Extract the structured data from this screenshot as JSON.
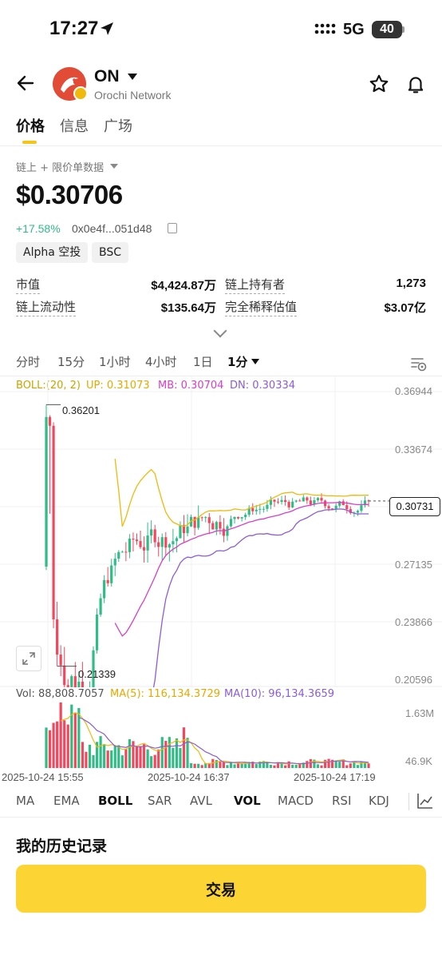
{
  "status_bar": {
    "time": "17:27",
    "network": "5G",
    "battery": "40"
  },
  "token": {
    "symbol": "ON",
    "name": "Orochi Network"
  },
  "tabs": [
    {
      "label": "价格"
    },
    {
      "label": "信息"
    },
    {
      "label": "广场"
    }
  ],
  "data_source": "链上 + 限价单数据",
  "price": "$0.30706",
  "change": "+17.58%",
  "address": "0x0e4f...051d48",
  "tags": [
    "Alpha 空投",
    "BSC"
  ],
  "stats": [
    {
      "label": "市值",
      "value": "$4,424.87万"
    },
    {
      "label": "链上持有者",
      "value": "1,273"
    },
    {
      "label": "链上流动性",
      "value": "$135.64万"
    },
    {
      "label": "完全稀释估值",
      "value": "$3.07亿"
    }
  ],
  "intervals": [
    "分时",
    "15分",
    "1小时",
    "4小时",
    "1日",
    "1分"
  ],
  "boll_legend": {
    "params": "BOLL:(20, 2)",
    "up": "UP: 0.31073",
    "mb": "MB: 0.30704",
    "dn": "DN: 0.30334"
  },
  "price_axis": [
    "0.36944",
    "0.33674",
    "0.27135",
    "0.23866",
    "0.20596"
  ],
  "current_price_label": "0.30731",
  "high_label": "0.36201",
  "low_label": "0.21339",
  "vol_legend": {
    "vol": "Vol: 88,808.7057",
    "ma5": "MA(5): 116,134.3729",
    "ma10": "MA(10): 96,134.3659"
  },
  "vol_axis": [
    "1.63M",
    "46.9K"
  ],
  "dates": [
    "2025-10-24 15:55",
    "2025-10-24 16:37",
    "2025-10-24 17:19"
  ],
  "indicators": [
    "MA",
    "EMA",
    "BOLL",
    "SAR",
    "AVL",
    "VOL",
    "MACD",
    "RSI",
    "KDJ"
  ],
  "history_title": "我的历史记录",
  "trade_button": "交易",
  "colors": {
    "up": "#2ebd85",
    "down": "#f6465d",
    "boll_up": "#f0b90b",
    "boll_mb": "#d63ec7",
    "boll_dn": "#8c5cd6",
    "accent": "#fcd535"
  },
  "chart_data": {
    "type": "candlestick",
    "interval": "1分",
    "ylim": [
      0.20596,
      0.36944
    ],
    "high": 0.36201,
    "low": 0.21339,
    "last": 0.30731,
    "x_ticks": [
      "2025-10-24 15:55",
      "2025-10-24 16:37",
      "2025-10-24 17:19"
    ],
    "boll": {
      "up": 0.31073,
      "mb": 0.30704,
      "dn": 0.30334
    },
    "volume": {
      "last": 88808.7057,
      "ma5": 116134.3729,
      "ma10": 96134.3659,
      "ylim_labels": [
        "46.9K",
        "1.63M"
      ]
    }
  }
}
